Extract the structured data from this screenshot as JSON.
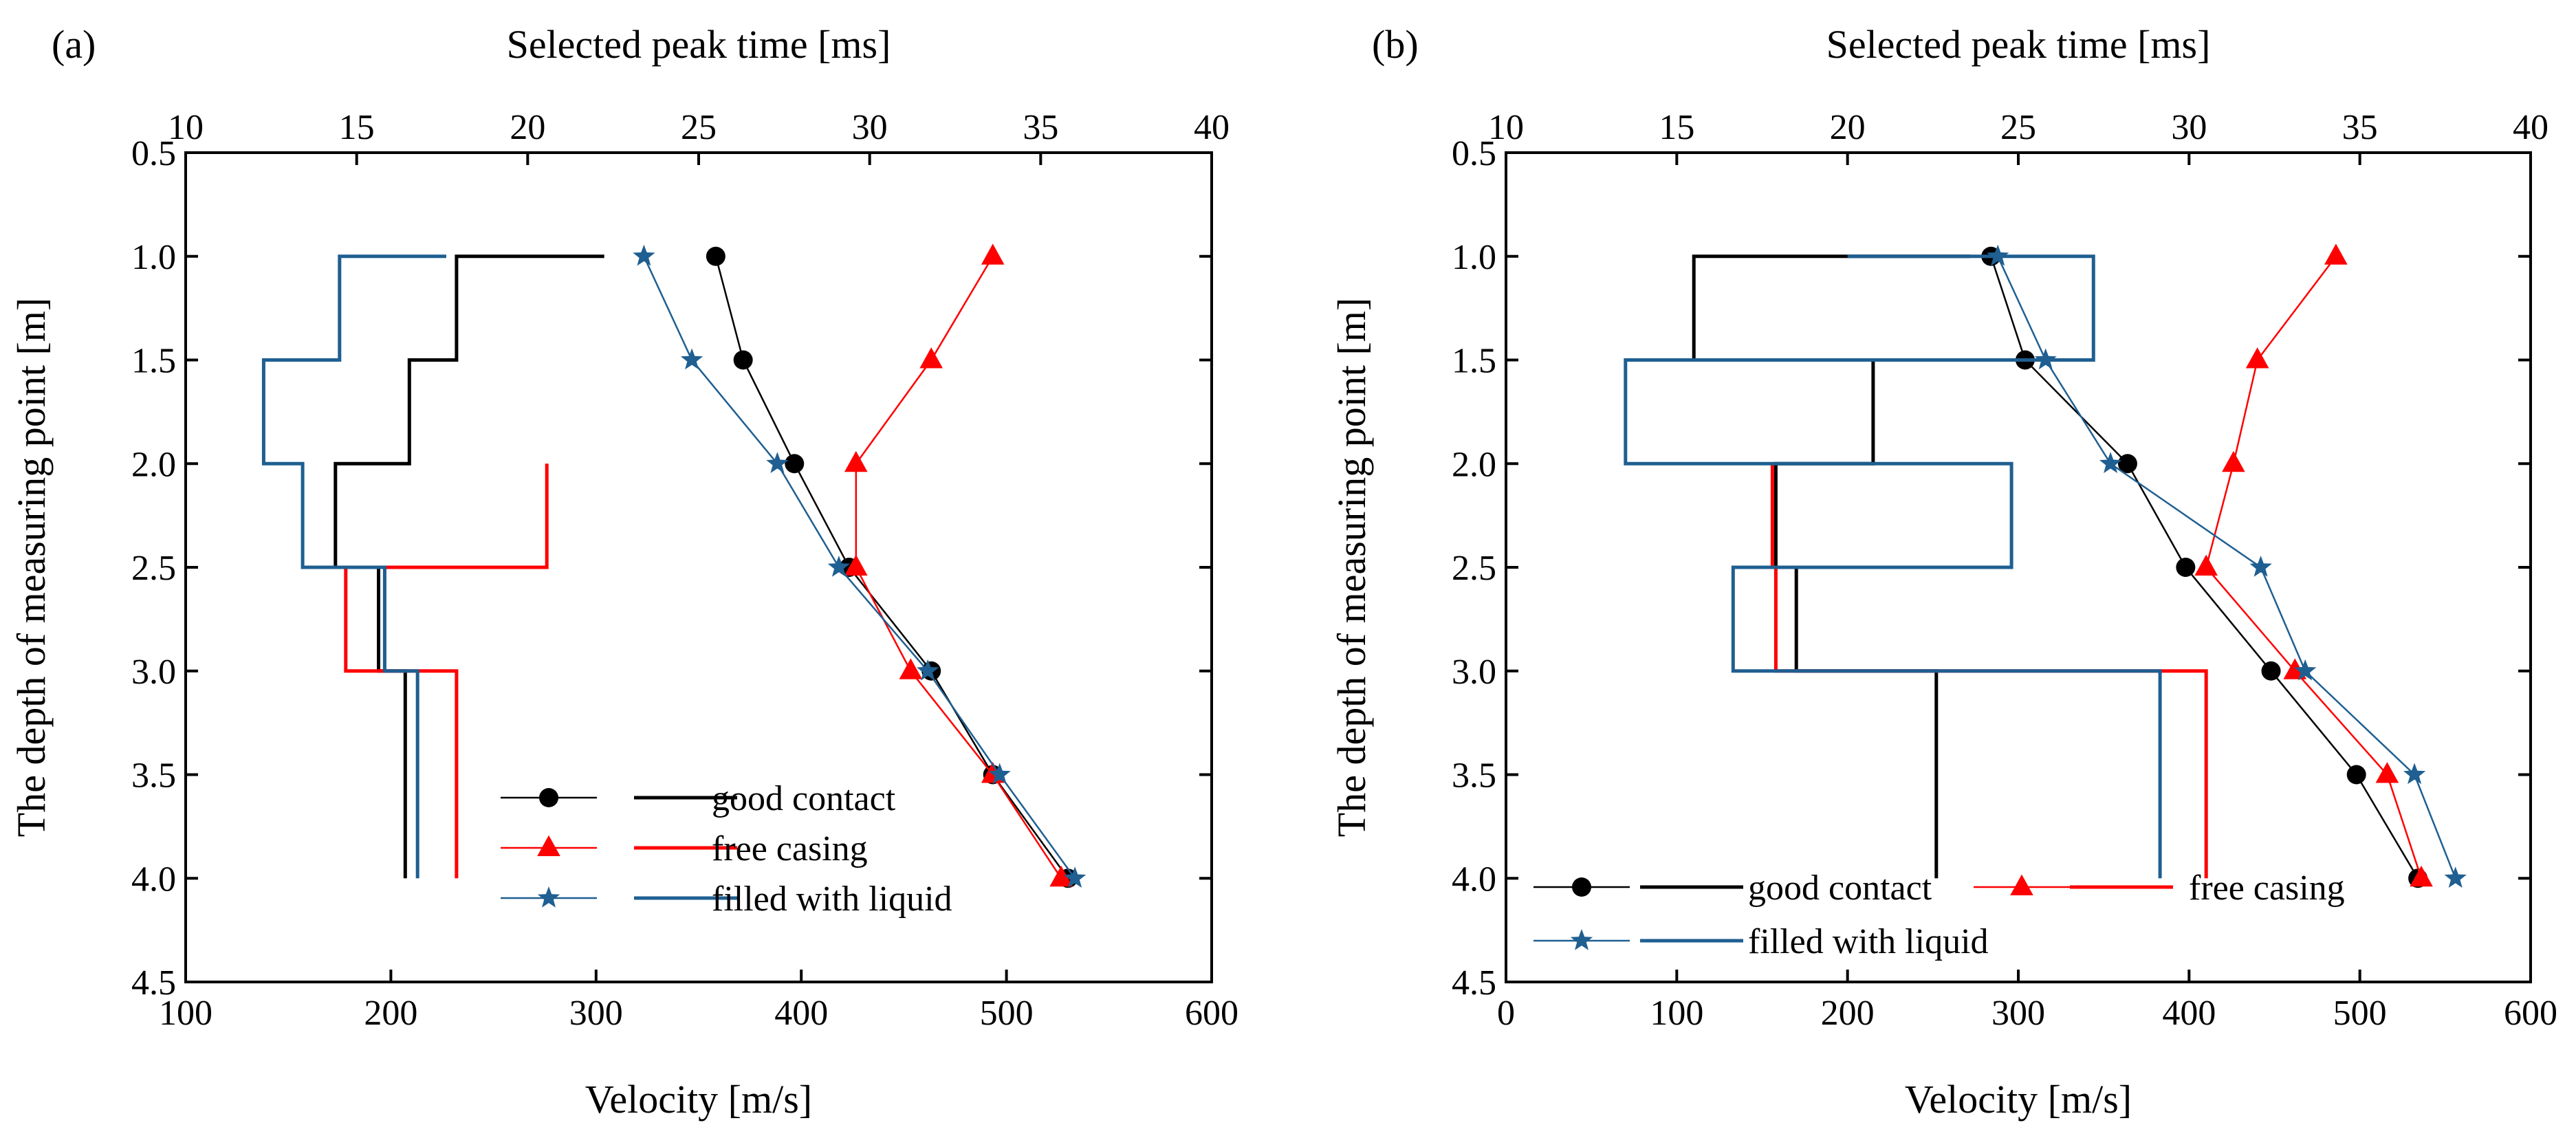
{
  "chart_data": [
    {
      "panel_label": "(a)",
      "type": "line",
      "title": "",
      "xlabel": "Velocity [m/s]",
      "ylabel": "The depth of measuring point [m]",
      "xlim": [
        100,
        600
      ],
      "ylim": [
        4.5,
        0.5
      ],
      "x_ticks": [
        "100",
        "200",
        "300",
        "400",
        "500",
        "600"
      ],
      "y_ticks": [
        "0.5",
        "1.0",
        "1.5",
        "2.0",
        "2.5",
        "3.0",
        "3.5",
        "4.0",
        "4.5"
      ],
      "top_axis": {
        "label": "Selected peak time [ms]",
        "lim": [
          10,
          40
        ],
        "ticks": [
          "10",
          "15",
          "20",
          "25",
          "30",
          "35",
          "40"
        ]
      },
      "series": [
        {
          "name": "good contact",
          "color": "#000000",
          "marker": "circle",
          "peak_time_ms": [
            25.5,
            26.3,
            27.8,
            29.4,
            31.8,
            33.6,
            35.8
          ],
          "depth_m": [
            1.0,
            1.5,
            2.0,
            2.5,
            3.0,
            3.5,
            4.0
          ],
          "velocity_m_s": [
            304,
            232,
            209,
            173,
            194,
            207,
            207
          ]
        },
        {
          "name": "free casing",
          "color": "#ff0000",
          "marker": "triangle",
          "peak_time_ms": [
            33.6,
            31.8,
            29.6,
            29.6,
            31.2,
            33.6,
            35.6
          ],
          "depth_m": [
            1.0,
            1.5,
            2.0,
            2.5,
            3.0,
            3.5,
            4.0
          ],
          "velocity_m_s": [
            null,
            null,
            null,
            276,
            178,
            232,
            232
          ]
        },
        {
          "name": "filled with liquid",
          "color": "#1f5f91",
          "marker": "star",
          "peak_time_ms": [
            23.4,
            24.8,
            27.3,
            29.1,
            31.7,
            33.8,
            36.0
          ],
          "depth_m": [
            1.0,
            1.5,
            2.0,
            2.5,
            3.0,
            3.5,
            4.0
          ],
          "velocity_m_s": [
            227,
            175,
            138,
            157,
            197,
            213,
            213
          ]
        }
      ],
      "legend_position": "bottom-right"
    },
    {
      "panel_label": "(b)",
      "type": "line",
      "title": "",
      "xlabel": "Velocity [m/s]",
      "ylabel": "The depth of measuring point [m]",
      "xlim": [
        0,
        600
      ],
      "ylim": [
        4.5,
        0.5
      ],
      "x_ticks": [
        "0",
        "100",
        "200",
        "300",
        "400",
        "500",
        "600"
      ],
      "y_ticks": [
        "0.5",
        "1.0",
        "1.5",
        "2.0",
        "2.5",
        "3.0",
        "3.5",
        "4.0",
        "4.5"
      ],
      "top_axis": {
        "label": "Selected peak time [ms]",
        "lim": [
          10,
          40
        ],
        "ticks": [
          "10",
          "15",
          "20",
          "25",
          "30",
          "35",
          "40"
        ]
      },
      "series": [
        {
          "name": "good contact",
          "color": "#000000",
          "marker": "circle",
          "peak_time_ms": [
            24.2,
            25.2,
            28.2,
            29.9,
            32.4,
            34.9,
            36.7
          ],
          "depth_m": [
            1.0,
            1.5,
            2.0,
            2.5,
            3.0,
            3.5,
            4.0
          ],
          "velocity_m_s": [
            272,
            110,
            215,
            158,
            170,
            252,
            252
          ]
        },
        {
          "name": "free casing",
          "color": "#ff0000",
          "marker": "triangle",
          "peak_time_ms": [
            34.3,
            32.0,
            31.3,
            30.5,
            33.1,
            35.8,
            36.8
          ],
          "depth_m": [
            1.0,
            1.5,
            2.0,
            2.5,
            3.0,
            3.5,
            4.0
          ],
          "velocity_m_s": [
            null,
            null,
            null,
            156,
            158,
            410,
            410
          ]
        },
        {
          "name": "filled with liquid",
          "color": "#1f5f91",
          "marker": "star",
          "peak_time_ms": [
            24.4,
            25.8,
            27.7,
            32.1,
            33.4,
            36.6,
            37.8
          ],
          "depth_m": [
            1.0,
            1.5,
            2.0,
            2.5,
            3.0,
            3.5,
            4.0
          ],
          "velocity_m_s": [
            200,
            344,
            70,
            296,
            133,
            383,
            383
          ]
        }
      ],
      "legend_position": "bottom"
    }
  ]
}
